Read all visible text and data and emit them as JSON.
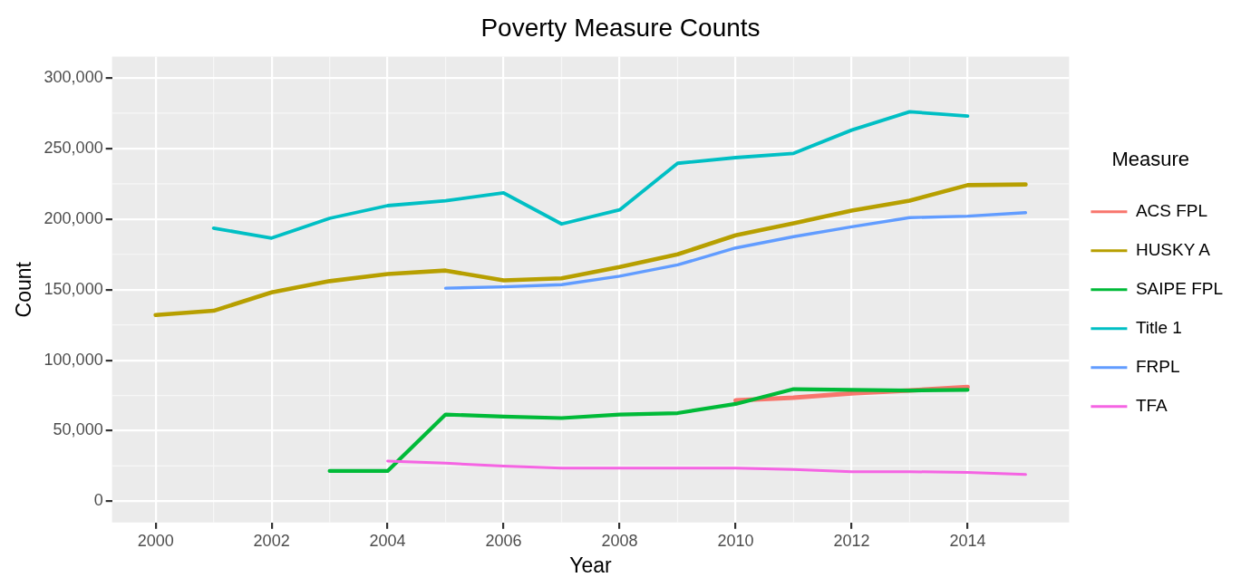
{
  "chart_data": {
    "type": "line",
    "title": "Poverty Measure Counts",
    "xlabel": "Year",
    "ylabel": "Count",
    "legend_title": "Measure",
    "xlim": [
      1999.25,
      2015.75
    ],
    "xticks": [
      2000,
      2002,
      2004,
      2006,
      2008,
      2010,
      2012,
      2014
    ],
    "ylim": [
      -15000,
      315000
    ],
    "yticks": [
      {
        "value": 0,
        "label": "0"
      },
      {
        "value": 50000,
        "label": "50,000"
      },
      {
        "value": 100000,
        "label": "100,000"
      },
      {
        "value": 150000,
        "label": "150,000"
      },
      {
        "value": 200000,
        "label": "200,000"
      },
      {
        "value": 250000,
        "label": "250,000"
      },
      {
        "value": 300000,
        "label": "300,000"
      }
    ],
    "grid": true,
    "legend": "right",
    "marker": "none",
    "line_style": "solid",
    "series": [
      {
        "name": "ACS FPL",
        "color": "#f8766d",
        "x": [
          2010,
          2011,
          2012,
          2013,
          2014
        ],
        "values": [
          71500,
          73500,
          76500,
          78500,
          81000
        ]
      },
      {
        "name": "HUSKY A",
        "color": "#b79f00",
        "x": [
          2000,
          2001,
          2002,
          2003,
          2004,
          2005,
          2006,
          2007,
          2008,
          2009,
          2010,
          2011,
          2012,
          2013,
          2014,
          2015
        ],
        "values": [
          132000,
          135000,
          148000,
          156000,
          161000,
          163500,
          156500,
          158000,
          166000,
          175000,
          188500,
          197000,
          206000,
          213000,
          224000,
          224500
        ]
      },
      {
        "name": "SAIPE FPL",
        "color": "#00ba38",
        "x": [
          2003,
          2004,
          2005,
          2006,
          2007,
          2008,
          2009,
          2010,
          2011,
          2012,
          2013,
          2014
        ],
        "values": [
          21500,
          21500,
          61500,
          60000,
          59000,
          61500,
          62500,
          69000,
          79500,
          79000,
          78500,
          79000
        ]
      },
      {
        "name": "Title 1",
        "color": "#00bfc4",
        "x": [
          2001,
          2002,
          2003,
          2004,
          2005,
          2006,
          2007,
          2008,
          2009,
          2010,
          2011,
          2012,
          2013,
          2014
        ],
        "values": [
          193500,
          186500,
          200500,
          209500,
          213000,
          218500,
          196500,
          206500,
          239500,
          243500,
          246500,
          263000,
          276000,
          273000
        ]
      },
      {
        "name": "FRPL",
        "color": "#619cff",
        "x": [
          2005,
          2006,
          2007,
          2008,
          2009,
          2010,
          2011,
          2012,
          2013,
          2014,
          2015
        ],
        "values": [
          151000,
          152000,
          153500,
          159500,
          167500,
          179500,
          187500,
          194500,
          201000,
          202000,
          204500
        ]
      },
      {
        "name": "TFA",
        "color": "#f564e3",
        "x": [
          2004,
          2005,
          2006,
          2007,
          2008,
          2009,
          2010,
          2011,
          2012,
          2013,
          2014,
          2015
        ],
        "values": [
          28500,
          27000,
          25000,
          23500,
          23500,
          23500,
          23500,
          22500,
          21000,
          21000,
          20500,
          19000
        ]
      }
    ]
  }
}
